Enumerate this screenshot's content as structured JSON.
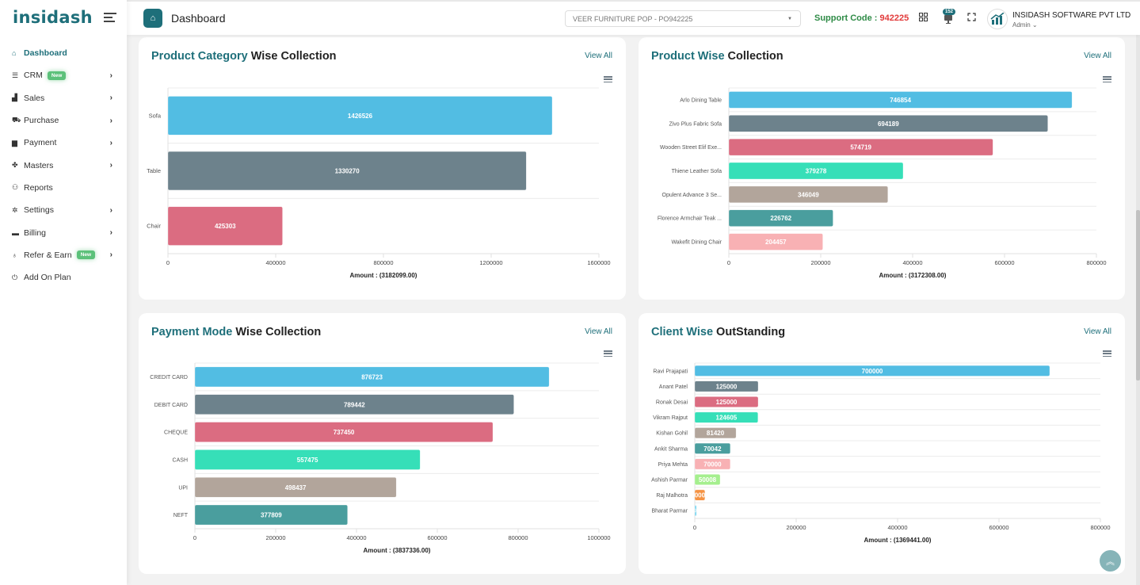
{
  "app": {
    "logo": "insidash",
    "page_title": "Dashboard",
    "company_select": "VEER FURNITURE POP - PO942225",
    "support_label": "Support Code : ",
    "support_code": "942225",
    "notification_count": "152",
    "company_name": "INSIDASH SOFTWARE PVT LTD",
    "role": "Admin",
    "colors": {
      "brand": "#1e6f7a",
      "support": "#2e8b46",
      "code": "#e23b3b",
      "badge": "#5cc17a"
    }
  },
  "sidebar": {
    "items": [
      {
        "label": "Dashboard",
        "icon": "home-icon",
        "glyph": "⌂",
        "active": true
      },
      {
        "label": "CRM",
        "icon": "list-icon",
        "glyph": "☰",
        "badge": "New",
        "chevron": true
      },
      {
        "label": "Sales",
        "icon": "chart-icon",
        "glyph": "▟",
        "chevron": true
      },
      {
        "label": "Purchase",
        "icon": "cart-icon",
        "glyph": "⛟",
        "chevron": true
      },
      {
        "label": "Payment",
        "icon": "book-icon",
        "glyph": "▆",
        "chevron": true
      },
      {
        "label": "Masters",
        "icon": "handshake-icon",
        "glyph": "✤",
        "chevron": true
      },
      {
        "label": "Reports",
        "icon": "users-icon",
        "glyph": "⚇",
        "chevron": false
      },
      {
        "label": "Settings",
        "icon": "gear-icon",
        "glyph": "✲",
        "chevron": true
      },
      {
        "label": "Billing",
        "icon": "billing-icon",
        "glyph": "▬",
        "chevron": true
      },
      {
        "label": "Refer & Earn",
        "icon": "money-bag-icon",
        "glyph": "♁",
        "badge": "New",
        "chevron": true
      },
      {
        "label": "Add On Plan",
        "icon": "plan-icon",
        "glyph": "⏻",
        "chevron": false
      }
    ]
  },
  "cards": [
    {
      "title_accent": "Product Category",
      "title_rest": " Wise Collection",
      "view_all": "View All"
    },
    {
      "title_accent": "Product Wise",
      "title_rest": " Collection",
      "view_all": "View All"
    },
    {
      "title_accent": "Payment Mode",
      "title_rest": " Wise Collection",
      "view_all": "View All"
    },
    {
      "title_accent": "Client Wise",
      "title_rest": " OutStanding",
      "view_all": "View All"
    }
  ],
  "chart_data": [
    {
      "type": "bar",
      "orientation": "horizontal",
      "title": "Product Category Wise Collection",
      "categories": [
        "Sofa",
        "Table",
        "Chair"
      ],
      "values": [
        1426526,
        1330270,
        425303
      ],
      "colors": [
        "#52bde3",
        "#6d828c",
        "#db6c81"
      ],
      "xlabel": "Amount : (3182099.00)",
      "xlim": [
        0,
        1600000
      ],
      "xticks": [
        0,
        400000,
        800000,
        1200000,
        1600000
      ],
      "grid": true
    },
    {
      "type": "bar",
      "orientation": "horizontal",
      "title": "Product Wise Collection",
      "categories": [
        "Arlo Dining Table",
        "Zivo Plus Fabric Sofa",
        "Wooden Street Elif Exe...",
        "Thiene Leather Sofa",
        "Opulent Advance 3 Se...",
        "Florence Armchair Teak ...",
        "Wakefit Dining Chair"
      ],
      "values": [
        746854,
        694189,
        574719,
        379278,
        346049,
        226762,
        204457
      ],
      "colors": [
        "#52bde3",
        "#6d828c",
        "#db6c81",
        "#36dfb8",
        "#b2a59b",
        "#4a9e9e",
        "#f8b1b4"
      ],
      "xlabel": "Amount : (3172308.00)",
      "xlim": [
        0,
        800000
      ],
      "xticks": [
        0,
        200000,
        400000,
        600000,
        800000
      ],
      "grid": true
    },
    {
      "type": "bar",
      "orientation": "horizontal",
      "title": "Payment Mode Wise Collection",
      "categories": [
        "CREDIT CARD",
        "DEBIT CARD",
        "CHEQUE",
        "CASH",
        "UPI",
        "NEFT"
      ],
      "values": [
        876723,
        789442,
        737450,
        557475,
        498437,
        377809
      ],
      "colors": [
        "#52bde3",
        "#6d828c",
        "#db6c81",
        "#36dfb8",
        "#b2a59b",
        "#4a9e9e"
      ],
      "xlabel": "Amount : (3837336.00)",
      "xlim": [
        0,
        1000000
      ],
      "xticks": [
        0,
        200000,
        400000,
        600000,
        800000,
        1000000
      ],
      "grid": true
    },
    {
      "type": "bar",
      "orientation": "horizontal",
      "title": "Client Wise OutStanding",
      "categories": [
        "Ravi Prajapati",
        "Anant Patel",
        "Ronak Desai",
        "Vikram Rajput",
        "Kishan Gohil",
        "Ankit Sharma",
        "Priya Mehta",
        "Ashish Parmar",
        "Raj Malhotra",
        "Bharat Parmar"
      ],
      "values": [
        700000,
        125000,
        125000,
        124605,
        81420,
        70042,
        70000,
        50008,
        20000,
        3366
      ],
      "colors": [
        "#52bde3",
        "#6d828c",
        "#db6c81",
        "#36dfb8",
        "#b2a59b",
        "#4a9e9e",
        "#f8b1b4",
        "#a5ef8e",
        "#f59343",
        "#7ed6f0"
      ],
      "xlabel": "Amount : (1369441.00)",
      "xlim": [
        0,
        800000
      ],
      "xticks": [
        0,
        200000,
        400000,
        600000,
        800000
      ],
      "grid": true
    }
  ]
}
